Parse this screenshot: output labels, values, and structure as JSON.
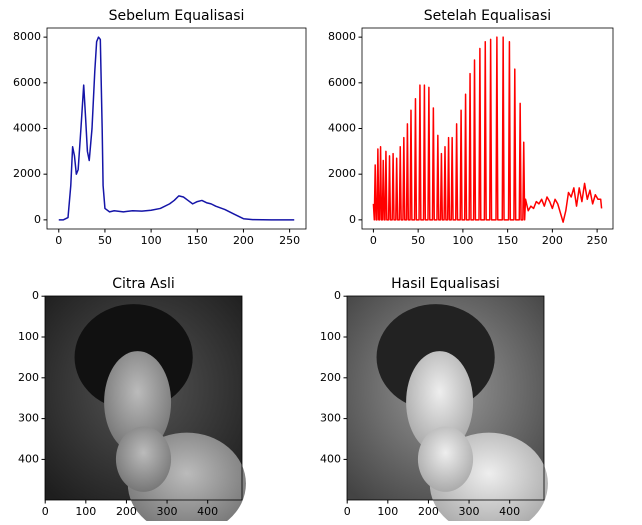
{
  "chart_data": [
    {
      "type": "line",
      "title": "Sebelum Equalisasi",
      "xlim": [
        -12.75,
        267.75
      ],
      "ylim": [
        -400,
        8400
      ],
      "xticks": [
        0,
        50,
        100,
        150,
        200,
        250
      ],
      "yticks": [
        0,
        2000,
        4000,
        6000,
        8000
      ],
      "series": [
        {
          "color": "#1515a8",
          "x": [
            0,
            5,
            10,
            13,
            15,
            17,
            19,
            21,
            24,
            27,
            29,
            31,
            33,
            36,
            39,
            41,
            43,
            45,
            47,
            48,
            50,
            55,
            60,
            70,
            80,
            90,
            100,
            110,
            120,
            125,
            130,
            135,
            140,
            145,
            150,
            155,
            160,
            165,
            170,
            180,
            190,
            195,
            200,
            210,
            230,
            255
          ],
          "values": [
            0,
            0,
            100,
            1500,
            3200,
            2800,
            2000,
            2200,
            4000,
            5900,
            4500,
            3000,
            2600,
            4000,
            6500,
            7800,
            8000,
            7900,
            4000,
            1500,
            500,
            350,
            400,
            350,
            400,
            380,
            420,
            500,
            700,
            850,
            1050,
            1000,
            850,
            700,
            800,
            850,
            750,
            700,
            600,
            450,
            250,
            150,
            50,
            10,
            0,
            0
          ]
        }
      ]
    },
    {
      "type": "line",
      "title": "Setelah Equalisasi",
      "xlim": [
        -12.75,
        267.75
      ],
      "ylim": [
        -400,
        8400
      ],
      "xticks": [
        0,
        50,
        100,
        150,
        200,
        250
      ],
      "yticks": [
        0,
        2000,
        4000,
        6000,
        8000
      ],
      "series": [
        {
          "color": "#ff0000",
          "x": [
            0,
            1,
            2,
            3,
            4,
            5,
            6,
            7,
            8,
            9,
            10,
            11,
            12,
            13,
            14,
            15,
            17,
            18,
            19,
            21,
            22,
            23,
            25,
            26,
            27,
            29,
            30,
            31,
            33,
            34,
            35,
            37,
            38,
            39,
            41,
            42,
            43,
            46,
            47,
            48,
            51,
            52,
            53,
            56,
            57,
            58,
            61,
            62,
            63,
            66,
            67,
            68,
            71,
            72,
            73,
            75,
            76,
            77,
            79,
            80,
            81,
            83,
            84,
            85,
            87,
            88,
            89,
            92,
            93,
            94,
            97,
            98,
            99,
            102,
            103,
            104,
            107,
            108,
            109,
            112,
            113,
            114,
            118,
            119,
            120,
            124,
            125,
            126,
            130,
            131,
            132,
            137,
            138,
            139,
            144,
            145,
            146,
            151,
            152,
            153,
            157,
            158,
            159,
            163,
            164,
            165,
            167,
            168,
            169,
            170,
            173,
            176,
            179,
            182,
            185,
            188,
            191,
            194,
            197,
            200,
            203,
            206,
            209,
            212,
            215,
            218,
            221,
            224,
            227,
            230,
            233,
            236,
            239,
            242,
            245,
            248,
            251,
            254,
            255
          ],
          "values": [
            700,
            0,
            2400,
            0,
            0,
            3100,
            0,
            0,
            3200,
            0,
            0,
            2600,
            0,
            0,
            3000,
            0,
            0,
            2800,
            0,
            0,
            2900,
            0,
            0,
            2700,
            0,
            0,
            3200,
            0,
            0,
            3600,
            0,
            0,
            4200,
            0,
            0,
            4800,
            0,
            0,
            5300,
            0,
            0,
            5900,
            0,
            0,
            5900,
            0,
            0,
            5800,
            0,
            0,
            4900,
            0,
            0,
            3700,
            0,
            0,
            2900,
            0,
            0,
            3200,
            0,
            0,
            3600,
            0,
            0,
            3600,
            0,
            0,
            4200,
            0,
            0,
            4800,
            0,
            0,
            5500,
            0,
            0,
            6400,
            0,
            0,
            7000,
            0,
            0,
            7500,
            0,
            0,
            7800,
            0,
            0,
            7900,
            0,
            0,
            8000,
            0,
            0,
            8000,
            0,
            0,
            7800,
            0,
            0,
            6600,
            0,
            0,
            5100,
            0,
            0,
            3400,
            0,
            900,
            400,
            600,
            500,
            800,
            700,
            900,
            600,
            1000,
            800,
            500,
            900,
            700,
            300,
            -100,
            400,
            1200,
            1000,
            1400,
            600,
            1400,
            800,
            1600,
            900,
            1300,
            700,
            1100,
            900,
            900,
            500
          ]
        }
      ]
    },
    {
      "type": "image",
      "title": "Citra Asli",
      "xlim": [
        -0.5,
        484.5
      ],
      "ylim": [
        499.5,
        -0.5
      ],
      "xticks": [
        0,
        100,
        200,
        300,
        400
      ],
      "yticks": [
        0,
        100,
        200,
        300,
        400
      ]
    },
    {
      "type": "image",
      "title": "Hasil Equalisasi",
      "xlim": [
        -0.5,
        484.5
      ],
      "ylim": [
        499.5,
        -0.5
      ],
      "xticks": [
        0,
        100,
        200,
        300,
        400
      ],
      "yticks": [
        0,
        100,
        200,
        300,
        400
      ]
    }
  ]
}
